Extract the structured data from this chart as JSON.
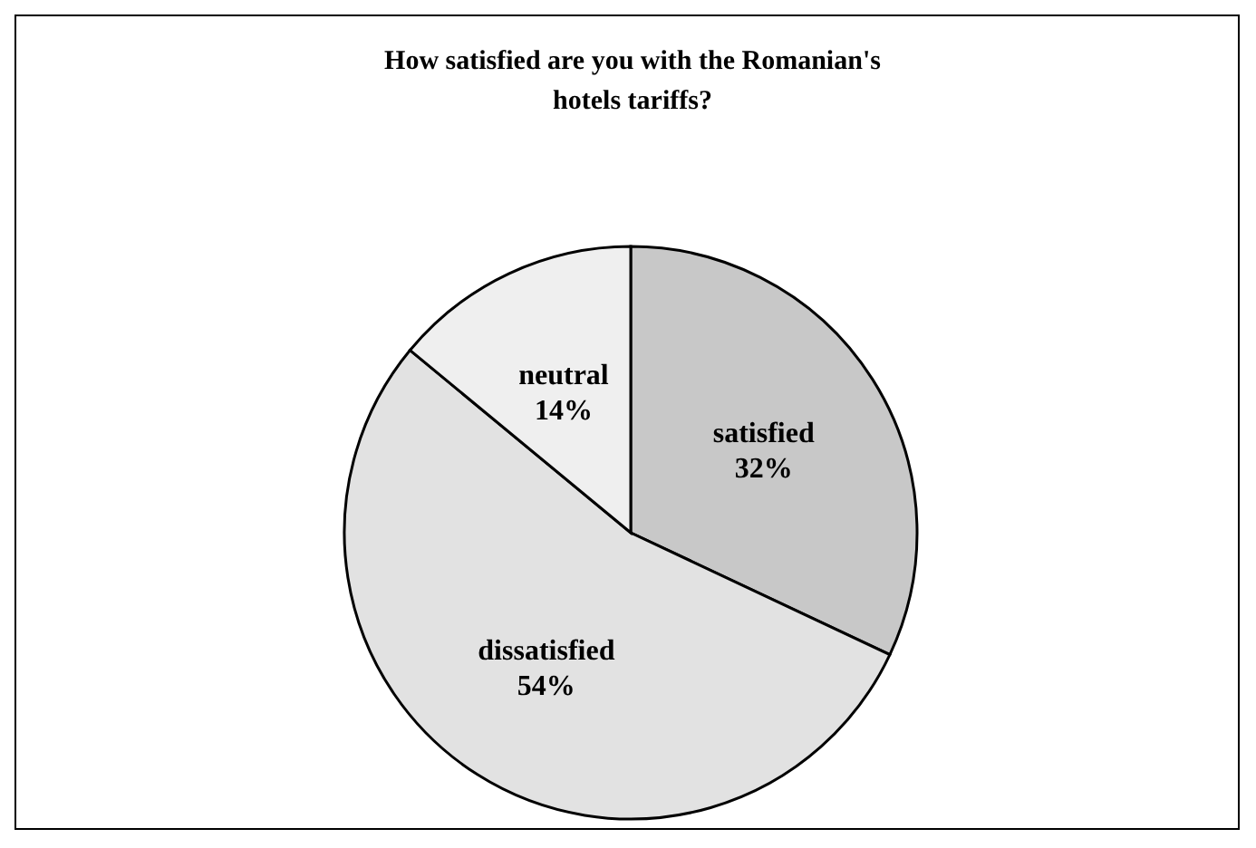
{
  "chart_data": {
    "type": "pie",
    "title": "How satisfied are you with the Romanian's hotels tariffs?",
    "categories": [
      "satisfied",
      "dissatisfied",
      "neutral"
    ],
    "values": [
      32,
      54,
      14
    ],
    "value_labels": [
      "32%",
      "54%",
      "14%"
    ],
    "colors": [
      "#c8c8c8",
      "#e2e2e2",
      "#efefef"
    ]
  }
}
